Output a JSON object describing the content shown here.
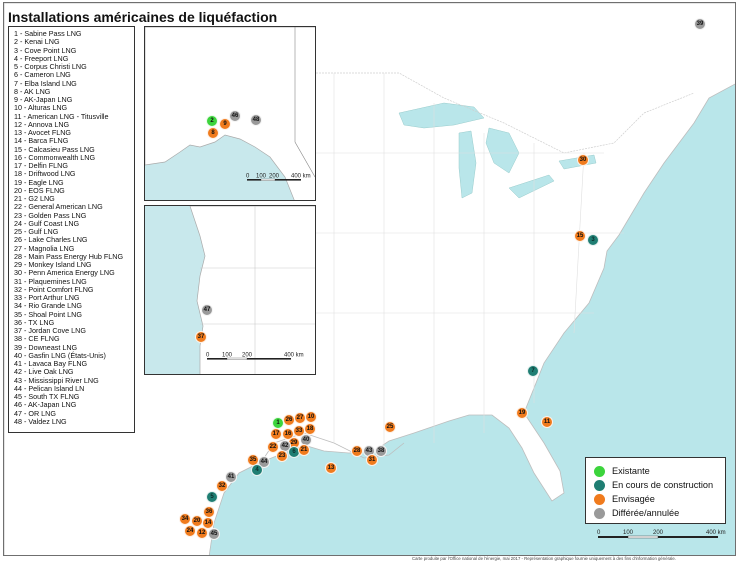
{
  "title": "Installations américaines de liquéfaction",
  "facility_list": [
    "1 - Sabine Pass LNG",
    "2 - Kenai LNG",
    "3 - Cove Point LNG",
    "4 - Freeport LNG",
    "5 - Corpus Christi LNG",
    "6 - Cameron LNG",
    "7 - Elba Island LNG",
    "8 - AK LNG",
    "9 - AK-Japan LNG",
    "10 - Alturas LNG",
    "11 - American LNG - Titusville",
    "12 - Annova LNG",
    "13 - Avocet FLNG",
    "14 - Barca FLNG",
    "15 - Calcasieu Pass LNG",
    "16 - Commonwealth LNG",
    "17 - Delfin FLNG",
    "18 - Driftwood LNG",
    "19 - Eagle LNG",
    "20 - EOS FLNG",
    "21 - G2 LNG",
    "22 - General American LNG",
    "23 - Golden Pass LNG",
    "24 - Gulf Coast LNG",
    "25 - Gulf LNG",
    "26 - Lake Charles LNG",
    "27 - Magnolia LNG",
    "28 - Main Pass Energy Hub FLNG",
    "29 - Monkey Island LNG",
    "30 - Penn America Energy LNG",
    "31 - Plaquemines LNG",
    "32 - Point Comfort FLNG",
    "33 - Port Arthur LNG",
    "34 - Rio Grande LNG",
    "35 - Shoal Point LNG",
    "36 - TX LNG",
    "37 - Jordan Cove LNG",
    "38 - CE FLNG",
    "39 - Downeast LNG",
    "40 - Gasfin LNG (États-Unis)",
    "41 - Lavaca Bay FLNG",
    "42 - Live Oak LNG",
    "43 - Mississippi River LNG",
    "44 - Pelican Island LN",
    "45 - South TX FLNG",
    "46 - AK-Japan LNG",
    "47 - OR LNG",
    "48 - Valdez LNG"
  ],
  "status_legend": [
    {
      "key": "existing",
      "label": "Existante",
      "color": "#3cd43c"
    },
    {
      "key": "construction",
      "label": "En cours de construction",
      "color": "#1f7e73"
    },
    {
      "key": "planned",
      "label": "Envisagée",
      "color": "#f07b1d"
    },
    {
      "key": "deferred",
      "label": "Différée/annulée",
      "color": "#9a9a9a"
    }
  ],
  "markers": {
    "main": [
      {
        "n": "39",
        "status": "deferred"
      },
      {
        "n": "30",
        "status": "planned"
      },
      {
        "n": "15",
        "status": "planned"
      },
      {
        "n": "3",
        "status": "construction"
      },
      {
        "n": "7",
        "status": "construction"
      },
      {
        "n": "19",
        "status": "planned"
      },
      {
        "n": "11",
        "status": "planned"
      },
      {
        "n": "25",
        "status": "planned"
      },
      {
        "n": "28",
        "status": "planned"
      },
      {
        "n": "43",
        "status": "deferred"
      },
      {
        "n": "38",
        "status": "deferred"
      },
      {
        "n": "31",
        "status": "planned"
      },
      {
        "n": "13",
        "status": "planned"
      },
      {
        "n": "1",
        "status": "existing"
      },
      {
        "n": "26",
        "status": "planned"
      },
      {
        "n": "27",
        "status": "planned"
      },
      {
        "n": "10",
        "status": "planned"
      },
      {
        "n": "17",
        "status": "planned"
      },
      {
        "n": "16",
        "status": "planned"
      },
      {
        "n": "33",
        "status": "planned"
      },
      {
        "n": "18",
        "status": "planned"
      },
      {
        "n": "29",
        "status": "planned"
      },
      {
        "n": "40",
        "status": "deferred"
      },
      {
        "n": "22",
        "status": "planned"
      },
      {
        "n": "42",
        "status": "deferred"
      },
      {
        "n": "6",
        "status": "construction"
      },
      {
        "n": "21",
        "status": "planned"
      },
      {
        "n": "23",
        "status": "planned"
      },
      {
        "n": "35",
        "status": "planned"
      },
      {
        "n": "44",
        "status": "deferred"
      },
      {
        "n": "4",
        "status": "construction"
      },
      {
        "n": "41",
        "status": "deferred"
      },
      {
        "n": "32",
        "status": "planned"
      },
      {
        "n": "5",
        "status": "construction"
      },
      {
        "n": "36",
        "status": "planned"
      },
      {
        "n": "34",
        "status": "planned"
      },
      {
        "n": "20",
        "status": "planned"
      },
      {
        "n": "14",
        "status": "planned"
      },
      {
        "n": "24",
        "status": "planned"
      },
      {
        "n": "12",
        "status": "planned"
      },
      {
        "n": "45",
        "status": "deferred"
      }
    ],
    "alaska": [
      {
        "n": "2",
        "status": "existing"
      },
      {
        "n": "9",
        "status": "planned"
      },
      {
        "n": "46",
        "status": "deferred"
      },
      {
        "n": "48",
        "status": "deferred"
      },
      {
        "n": "8",
        "status": "planned"
      }
    ],
    "west": [
      {
        "n": "47",
        "status": "deferred"
      },
      {
        "n": "37",
        "status": "planned"
      }
    ]
  },
  "scales": {
    "alaska": [
      "0",
      "100",
      "200",
      "400 km"
    ],
    "west": [
      "0",
      "100",
      "200",
      "400 km"
    ],
    "main": [
      "0",
      "100",
      "200",
      "400 km"
    ]
  },
  "credit": "Carte produite par l'Office national de l'énergie, mai 2017 - Représentation graphique fournie uniquement à des fins d'information générale."
}
